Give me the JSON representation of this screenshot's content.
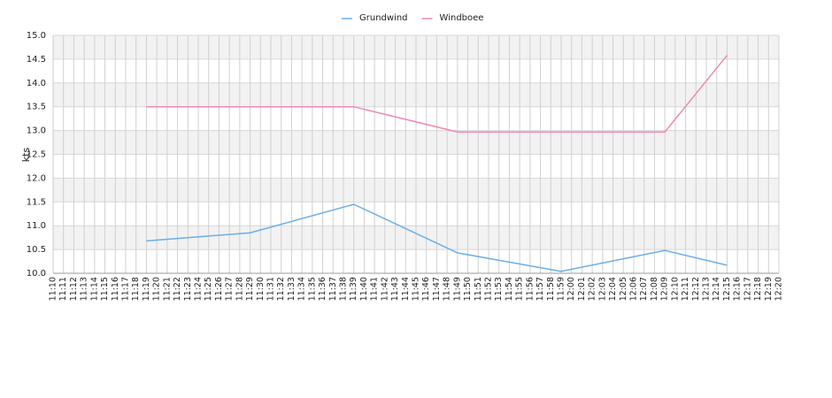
{
  "chart_data": {
    "type": "line",
    "y_label": "kts",
    "categories": [
      "11:10",
      "11:11",
      "11:12",
      "11:13",
      "11:14",
      "11:15",
      "11:16",
      "11:17",
      "11:18",
      "11:19",
      "11:20",
      "11:21",
      "11:22",
      "11:23",
      "11:24",
      "11:25",
      "11:26",
      "11:27",
      "11:28",
      "11:29",
      "11:30",
      "11:31",
      "11:32",
      "11:33",
      "11:34",
      "11:35",
      "11:36",
      "11:37",
      "11:38",
      "11:39",
      "11:40",
      "11:41",
      "11:42",
      "11:43",
      "11:44",
      "11:45",
      "11:46",
      "11:47",
      "11:48",
      "11:49",
      "11:50",
      "11:51",
      "11:52",
      "11:53",
      "11:54",
      "11:55",
      "11:56",
      "11:57",
      "11:58",
      "11:59",
      "12:00",
      "12:01",
      "12:02",
      "12:03",
      "12:04",
      "12:05",
      "12:06",
      "12:07",
      "12:08",
      "12:09",
      "12:10",
      "12:11",
      "12:12",
      "12:13",
      "12:14",
      "12:15",
      "12:16",
      "12:17",
      "12:18",
      "12:19",
      "12:20"
    ],
    "series": [
      {
        "name": "Grundwind",
        "color": "#6aaee8",
        "x": [
          "11:19",
          "11:29",
          "11:39",
          "11:49",
          "11:59",
          "12:09",
          "12:15"
        ],
        "values": [
          10.68,
          10.85,
          11.45,
          10.43,
          10.04,
          10.48,
          10.17
        ]
      },
      {
        "name": "Windboee",
        "color": "#ee88b8",
        "x": [
          "11:19",
          "11:29",
          "11:39",
          "11:49",
          "11:59",
          "12:09",
          "12:15"
        ],
        "values": [
          13.5,
          13.5,
          13.5,
          12.97,
          12.97,
          12.97,
          14.58
        ]
      }
    ],
    "ylim": [
      10,
      15
    ],
    "yticks": [
      {
        "value": 10,
        "label": "10.0"
      },
      10.5,
      {
        "value": 11,
        "label": "11.0"
      },
      11.5,
      {
        "value": 12,
        "label": "12.0"
      },
      12.5,
      {
        "value": 13,
        "label": "13.0"
      },
      13.5,
      {
        "value": 14,
        "label": "14.0"
      },
      14.5,
      {
        "value": 15,
        "label": "15.0"
      }
    ],
    "grid": true,
    "legend": "top"
  }
}
